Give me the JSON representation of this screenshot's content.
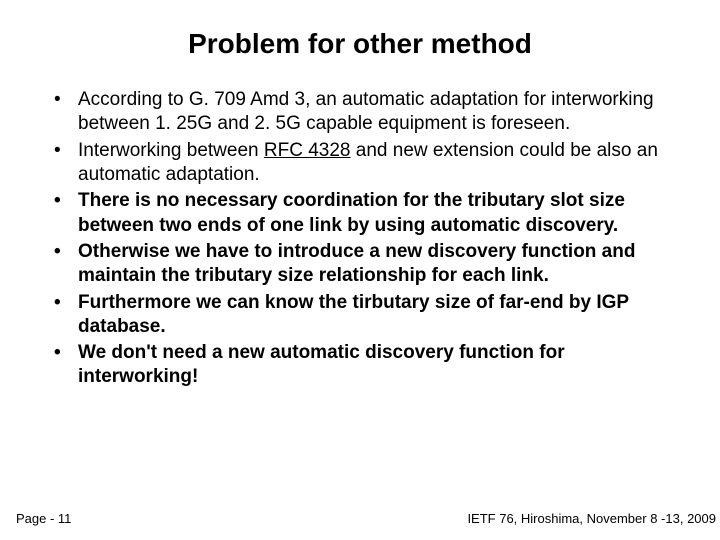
{
  "title": "Problem for other method",
  "bullets": [
    {
      "pre": "According to G. 709 Amd 3, an automatic adaptation for interworking between 1. 25G and 2. 5G capable equipment is foreseen.",
      "link": "",
      "post": "",
      "bold": false
    },
    {
      "pre": "Interworking between ",
      "link": "RFC 4328",
      "post": " and new extension could be also an automatic adaptation.",
      "bold": false
    },
    {
      "pre": "There is no necessary coordination for the tributary slot size between two ends of one link by using automatic discovery.",
      "link": "",
      "post": "",
      "bold": true
    },
    {
      "pre": "Otherwise we have to introduce a new discovery function and maintain the tributary size relationship for each link.",
      "link": "",
      "post": "",
      "bold": true
    },
    {
      "pre": "Furthermore we can know the tirbutary size of far-end by IGP database.",
      "link": "",
      "post": "",
      "bold": true
    },
    {
      "pre": "We don't need a new automatic discovery function for interworking!",
      "link": "",
      "post": "",
      "bold": true
    }
  ],
  "footer": {
    "left": "Page - 11",
    "right": "IETF 76, Hiroshima, November 8 -13, 2009"
  },
  "colors": {
    "bg": "#ffffff",
    "text": "#000000",
    "link": "#000000"
  },
  "fonts": {
    "title_size": 28,
    "body_size": 19,
    "footer_size": 13
  }
}
